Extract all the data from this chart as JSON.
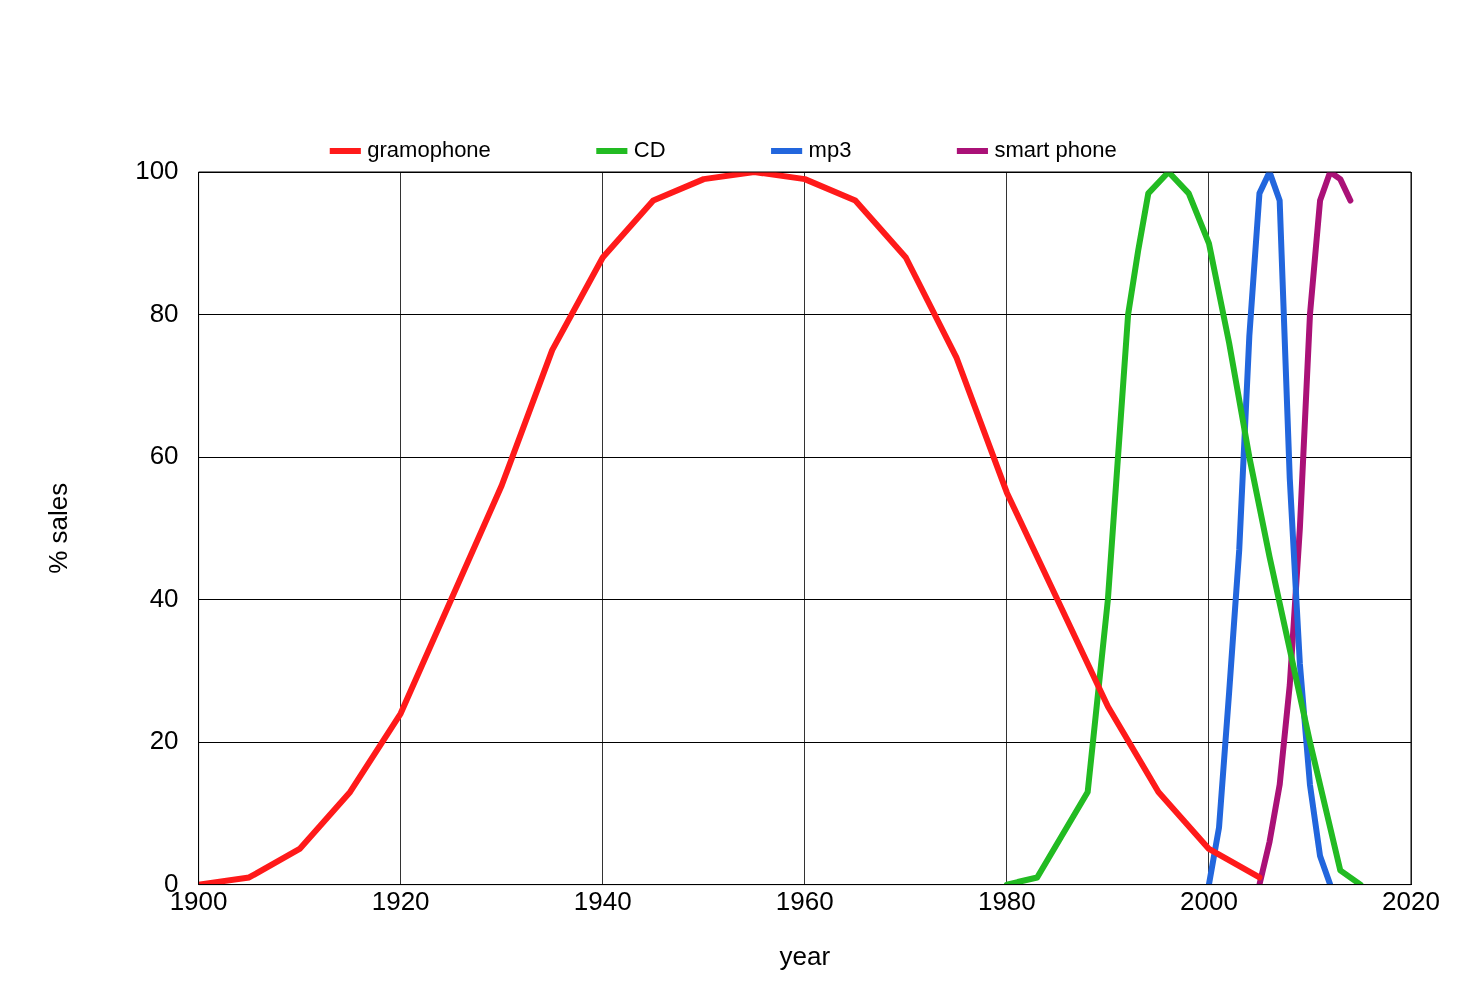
{
  "chart_data": {
    "type": "line",
    "xlabel": "year",
    "ylabel": "% sales",
    "xlim": [
      1900,
      2020
    ],
    "xticks": [
      1900,
      1920,
      1940,
      1960,
      1980,
      2000,
      2020
    ],
    "ylim": [
      0,
      100
    ],
    "yticks": [
      0,
      20,
      40,
      60,
      80,
      100
    ],
    "grid": true,
    "legend": "top",
    "marker": "none",
    "line_style": "solid",
    "series": [
      {
        "name": "gramophone",
        "color": "#ff1a1a",
        "x": [
          1900,
          1905,
          1910,
          1915,
          1920,
          1925,
          1930,
          1935,
          1940,
          1945,
          1950,
          1955,
          1960,
          1965,
          1970,
          1975,
          1980,
          1985,
          1990,
          1995,
          2000,
          2005
        ],
        "values": [
          0,
          1,
          5,
          13,
          24,
          40,
          56,
          75,
          88,
          96,
          99,
          100,
          99,
          96,
          88,
          74,
          55,
          40,
          25,
          13,
          5,
          1
        ]
      },
      {
        "name": "CD",
        "color": "#22bb22",
        "x": [
          1980,
          1983,
          1988,
          1990,
          1991,
          1992,
          1993,
          1994,
          1996,
          1998,
          2000,
          2002,
          2004,
          2006,
          2008,
          2010,
          2013,
          2015
        ],
        "values": [
          0,
          1,
          13,
          40,
          60,
          80,
          89,
          97,
          100,
          97,
          90,
          76,
          60,
          46,
          33,
          20,
          2,
          0
        ]
      },
      {
        "name": "mp3",
        "color": "#2266dd",
        "x": [
          2000,
          2001,
          2002,
          2003,
          2004,
          2005,
          2006,
          2007,
          2008,
          2009,
          2010,
          2011,
          2012
        ],
        "values": [
          0,
          8,
          27,
          47,
          77,
          97,
          100,
          96,
          57,
          31,
          14,
          4,
          0
        ]
      },
      {
        "name": "smart phone",
        "color": "#aa1177",
        "x": [
          2005,
          2006,
          2007,
          2008,
          2009,
          2010,
          2011,
          2012,
          2013,
          2014
        ],
        "values": [
          0,
          6,
          14,
          28,
          50,
          80,
          96,
          100,
          99,
          96
        ]
      }
    ]
  }
}
